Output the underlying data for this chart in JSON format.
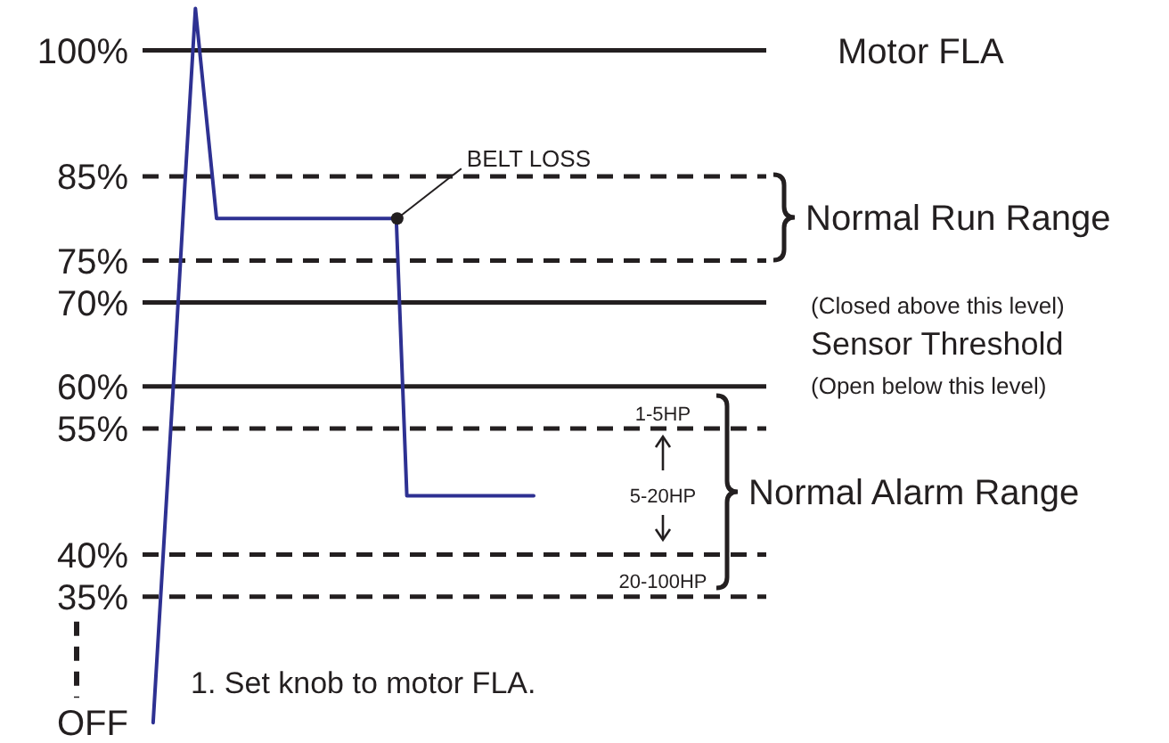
{
  "chart_data": {
    "type": "line",
    "categories": [
      null,
      null,
      null,
      null,
      null,
      null,
      null,
      null,
      null,
      null,
      null,
      null,
      null,
      null,
      null,
      null,
      null,
      null,
      null,
      null,
      null,
      null,
      null,
      null,
      null,
      null,
      null,
      null,
      null,
      null,
      null,
      null,
      null,
      null,
      null,
      null,
      null,
      null,
      null,
      null,
      null,
      null,
      null,
      null,
      null,
      null,
      null,
      null,
      null,
      null,
      null,
      null,
      null,
      null,
      null,
      null,
      null,
      null,
      null,
      null
    ],
    "series": [
      {
        "color": "#2e3192",
        "values": [
          null,
          20,
          41,
          62,
          84,
          105,
          92.5,
          80,
          80,
          80,
          80,
          80,
          80,
          80,
          80,
          80,
          80,
          80,
          80,
          80,
          80,
          80,
          80,
          80,
          80,
          47,
          47,
          47,
          47,
          47,
          47,
          47,
          47,
          47,
          47,
          47,
          47,
          47,
          null,
          null,
          null,
          null,
          null,
          null,
          null,
          null,
          null,
          null,
          null,
          null,
          null,
          null,
          null,
          null,
          null,
          null,
          null,
          null,
          null,
          null
        ]
      }
    ],
    "ylim": [
      18,
      106
    ],
    "yticks": [
      {
        "value": 100,
        "label": "100%"
      },
      {
        "value": 85,
        "label": "85%"
      },
      {
        "value": 75,
        "label": "75%"
      },
      {
        "value": 70,
        "label": "70%"
      },
      {
        "value": 60,
        "label": "60%"
      },
      {
        "value": 55,
        "label": "55%"
      },
      {
        "value": 40,
        "label": "40%"
      },
      {
        "value": 35,
        "label": "35%"
      },
      {
        "value": 20,
        "label": "OFF"
      }
    ],
    "tick_labels": "y",
    "marker": "none",
    "line_style": "solid",
    "ref_lines": [
      {
        "axis": "y",
        "value": 100,
        "label": "Motor FLA",
        "line_style": "solid",
        "color": "#231f20"
      },
      {
        "axis": "y",
        "value": 85,
        "line_style": "dashed",
        "color": "#231f20"
      },
      {
        "axis": "y",
        "value": 75,
        "line_style": "dashed",
        "color": "#231f20"
      },
      {
        "axis": "y",
        "value": 70,
        "line_style": "solid",
        "color": "#231f20"
      },
      {
        "axis": "y",
        "value": 60,
        "line_style": "solid",
        "color": "#231f20"
      },
      {
        "axis": "y",
        "value": 55,
        "line_style": "dashed",
        "color": "#231f20"
      },
      {
        "axis": "y",
        "value": 40,
        "line_style": "dashed",
        "color": "#231f20"
      },
      {
        "axis": "y",
        "value": 35,
        "line_style": "dashed",
        "color": "#231f20"
      }
    ],
    "annotations": [
      "BELT LOSS",
      "Normal Run Range",
      "Normal Alarm Range",
      "(Closed above this level)",
      "Sensor Threshold",
      "(Open below this level)",
      "1-5HP",
      "5-20HP",
      "20-100HP",
      "1. Set knob to motor FLA."
    ]
  }
}
